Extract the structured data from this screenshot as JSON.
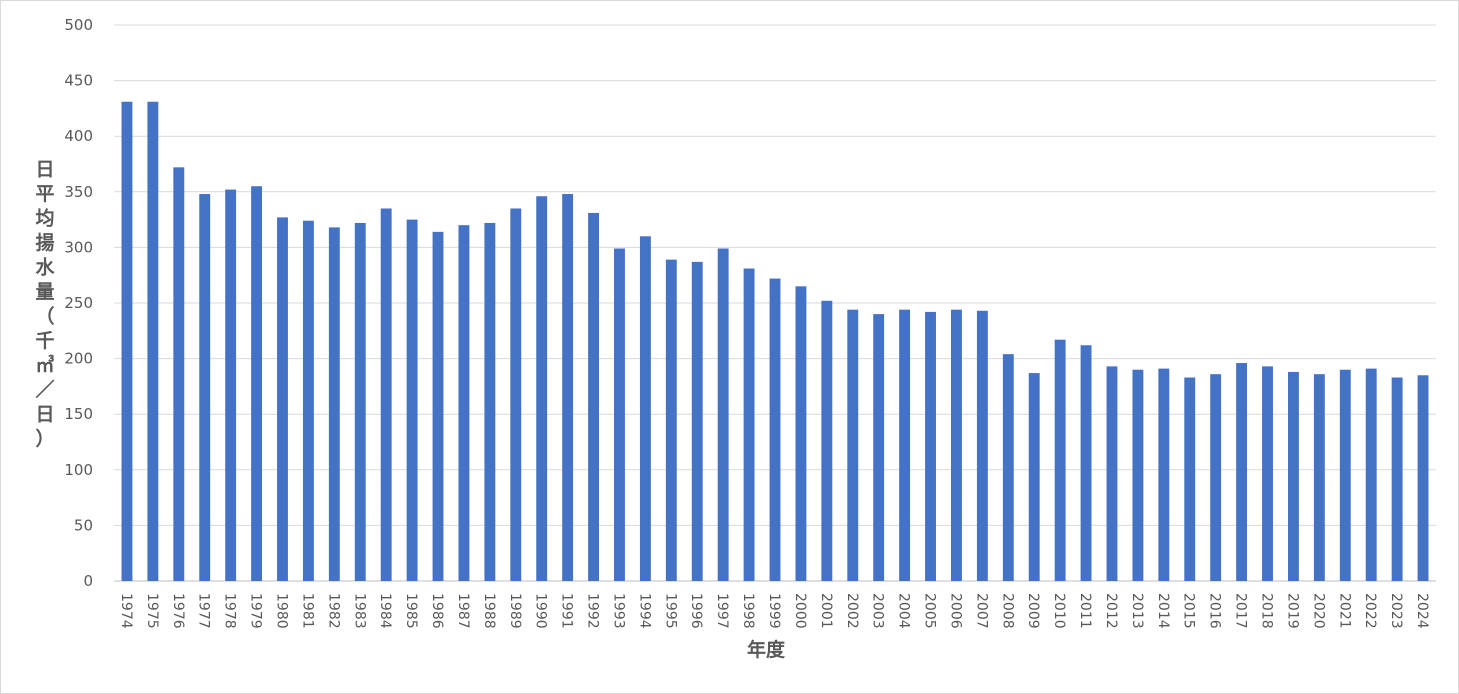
{
  "chart_data": {
    "type": "bar",
    "title": "",
    "xlabel": "年度",
    "ylabel": "日平均揚水量（千㎥／日）",
    "ylim": [
      0,
      500
    ],
    "ytick_step": 50,
    "grid": true,
    "legend": "none",
    "color": "#4472c4",
    "categories": [
      "1974",
      "1975",
      "1976",
      "1977",
      "1978",
      "1979",
      "1980",
      "1981",
      "1982",
      "1983",
      "1984",
      "1985",
      "1986",
      "1987",
      "1988",
      "1989",
      "1990",
      "1991",
      "1992",
      "1993",
      "1994",
      "1995",
      "1996",
      "1997",
      "1998",
      "1999",
      "2000",
      "2001",
      "2002",
      "2003",
      "2004",
      "2005",
      "2006",
      "2007",
      "2008",
      "2009",
      "2010",
      "2011",
      "2012",
      "2013",
      "2014",
      "2015",
      "2016",
      "2017",
      "2018",
      "2019",
      "2020",
      "2021",
      "2022",
      "2023",
      "2024"
    ],
    "values": [
      431,
      431,
      372,
      348,
      352,
      355,
      327,
      324,
      318,
      322,
      335,
      325,
      314,
      320,
      322,
      335,
      346,
      348,
      331,
      299,
      310,
      289,
      287,
      299,
      281,
      272,
      265,
      252,
      244,
      240,
      244,
      242,
      244,
      243,
      204,
      187,
      217,
      212,
      193,
      190,
      191,
      183,
      186,
      196,
      193,
      188,
      186,
      190,
      191,
      183,
      185
    ]
  }
}
